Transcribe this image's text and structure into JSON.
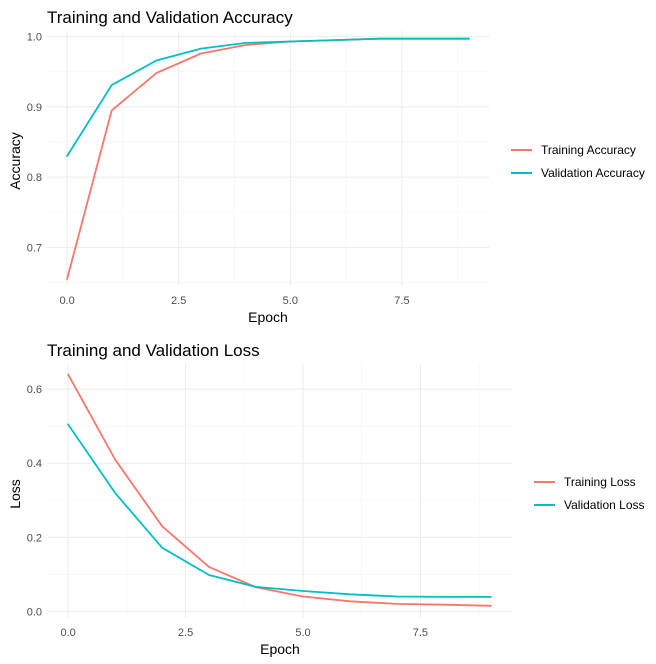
{
  "colors": {
    "training": "#F8766D",
    "validation": "#00BFC4"
  },
  "chart_data": [
    {
      "type": "line",
      "title": "Training and Validation Accuracy",
      "xlabel": "Epoch",
      "ylabel": "Accuracy",
      "x": [
        0,
        1,
        2,
        3,
        4,
        5,
        6,
        7,
        8,
        9
      ],
      "xlim": [
        -0.45,
        9.45
      ],
      "ylim": [
        0.645,
        1.008
      ],
      "xticks": [
        0,
        2.5,
        5,
        7.5
      ],
      "xtick_labels": [
        "0.0",
        "2.5",
        "5.0",
        "7.5"
      ],
      "yticks": [
        0.7,
        0.8,
        0.9,
        1.0
      ],
      "ytick_labels": [
        "0.7",
        "0.8",
        "0.9",
        "1.0"
      ],
      "series": [
        {
          "name": "Training Accuracy",
          "color": "#F8766D",
          "values": [
            0.655,
            0.895,
            0.948,
            0.976,
            0.988,
            0.993,
            0.995,
            0.997,
            0.997,
            0.997
          ]
        },
        {
          "name": "Validation Accuracy",
          "color": "#00BFC4",
          "values": [
            0.83,
            0.931,
            0.966,
            0.983,
            0.991,
            0.993,
            0.995,
            0.997,
            0.997,
            0.997
          ]
        }
      ],
      "legend": [
        "Training Accuracy",
        "Validation Accuracy"
      ]
    },
    {
      "type": "line",
      "title": "Training and Validation Loss",
      "xlabel": "Epoch",
      "ylabel": "Loss",
      "x": [
        0,
        1,
        2,
        3,
        4,
        5,
        6,
        7,
        8,
        9
      ],
      "xlim": [
        -0.45,
        9.45
      ],
      "ylim": [
        -0.018,
        0.668
      ],
      "xticks": [
        0,
        2.5,
        5,
        7.5
      ],
      "xtick_labels": [
        "0.0",
        "2.5",
        "5.0",
        "7.5"
      ],
      "yticks": [
        0.0,
        0.2,
        0.4,
        0.6
      ],
      "ytick_labels": [
        "0.0",
        "0.2",
        "0.4",
        "0.6"
      ],
      "series": [
        {
          "name": "Training Loss",
          "color": "#F8766D",
          "values": [
            0.64,
            0.41,
            0.23,
            0.12,
            0.065,
            0.04,
            0.027,
            0.02,
            0.018,
            0.015
          ]
        },
        {
          "name": "Validation Loss",
          "color": "#00BFC4",
          "values": [
            0.505,
            0.32,
            0.172,
            0.098,
            0.066,
            0.055,
            0.046,
            0.04,
            0.039,
            0.039
          ]
        }
      ],
      "legend": [
        "Training Loss",
        "Validation Loss"
      ]
    }
  ]
}
